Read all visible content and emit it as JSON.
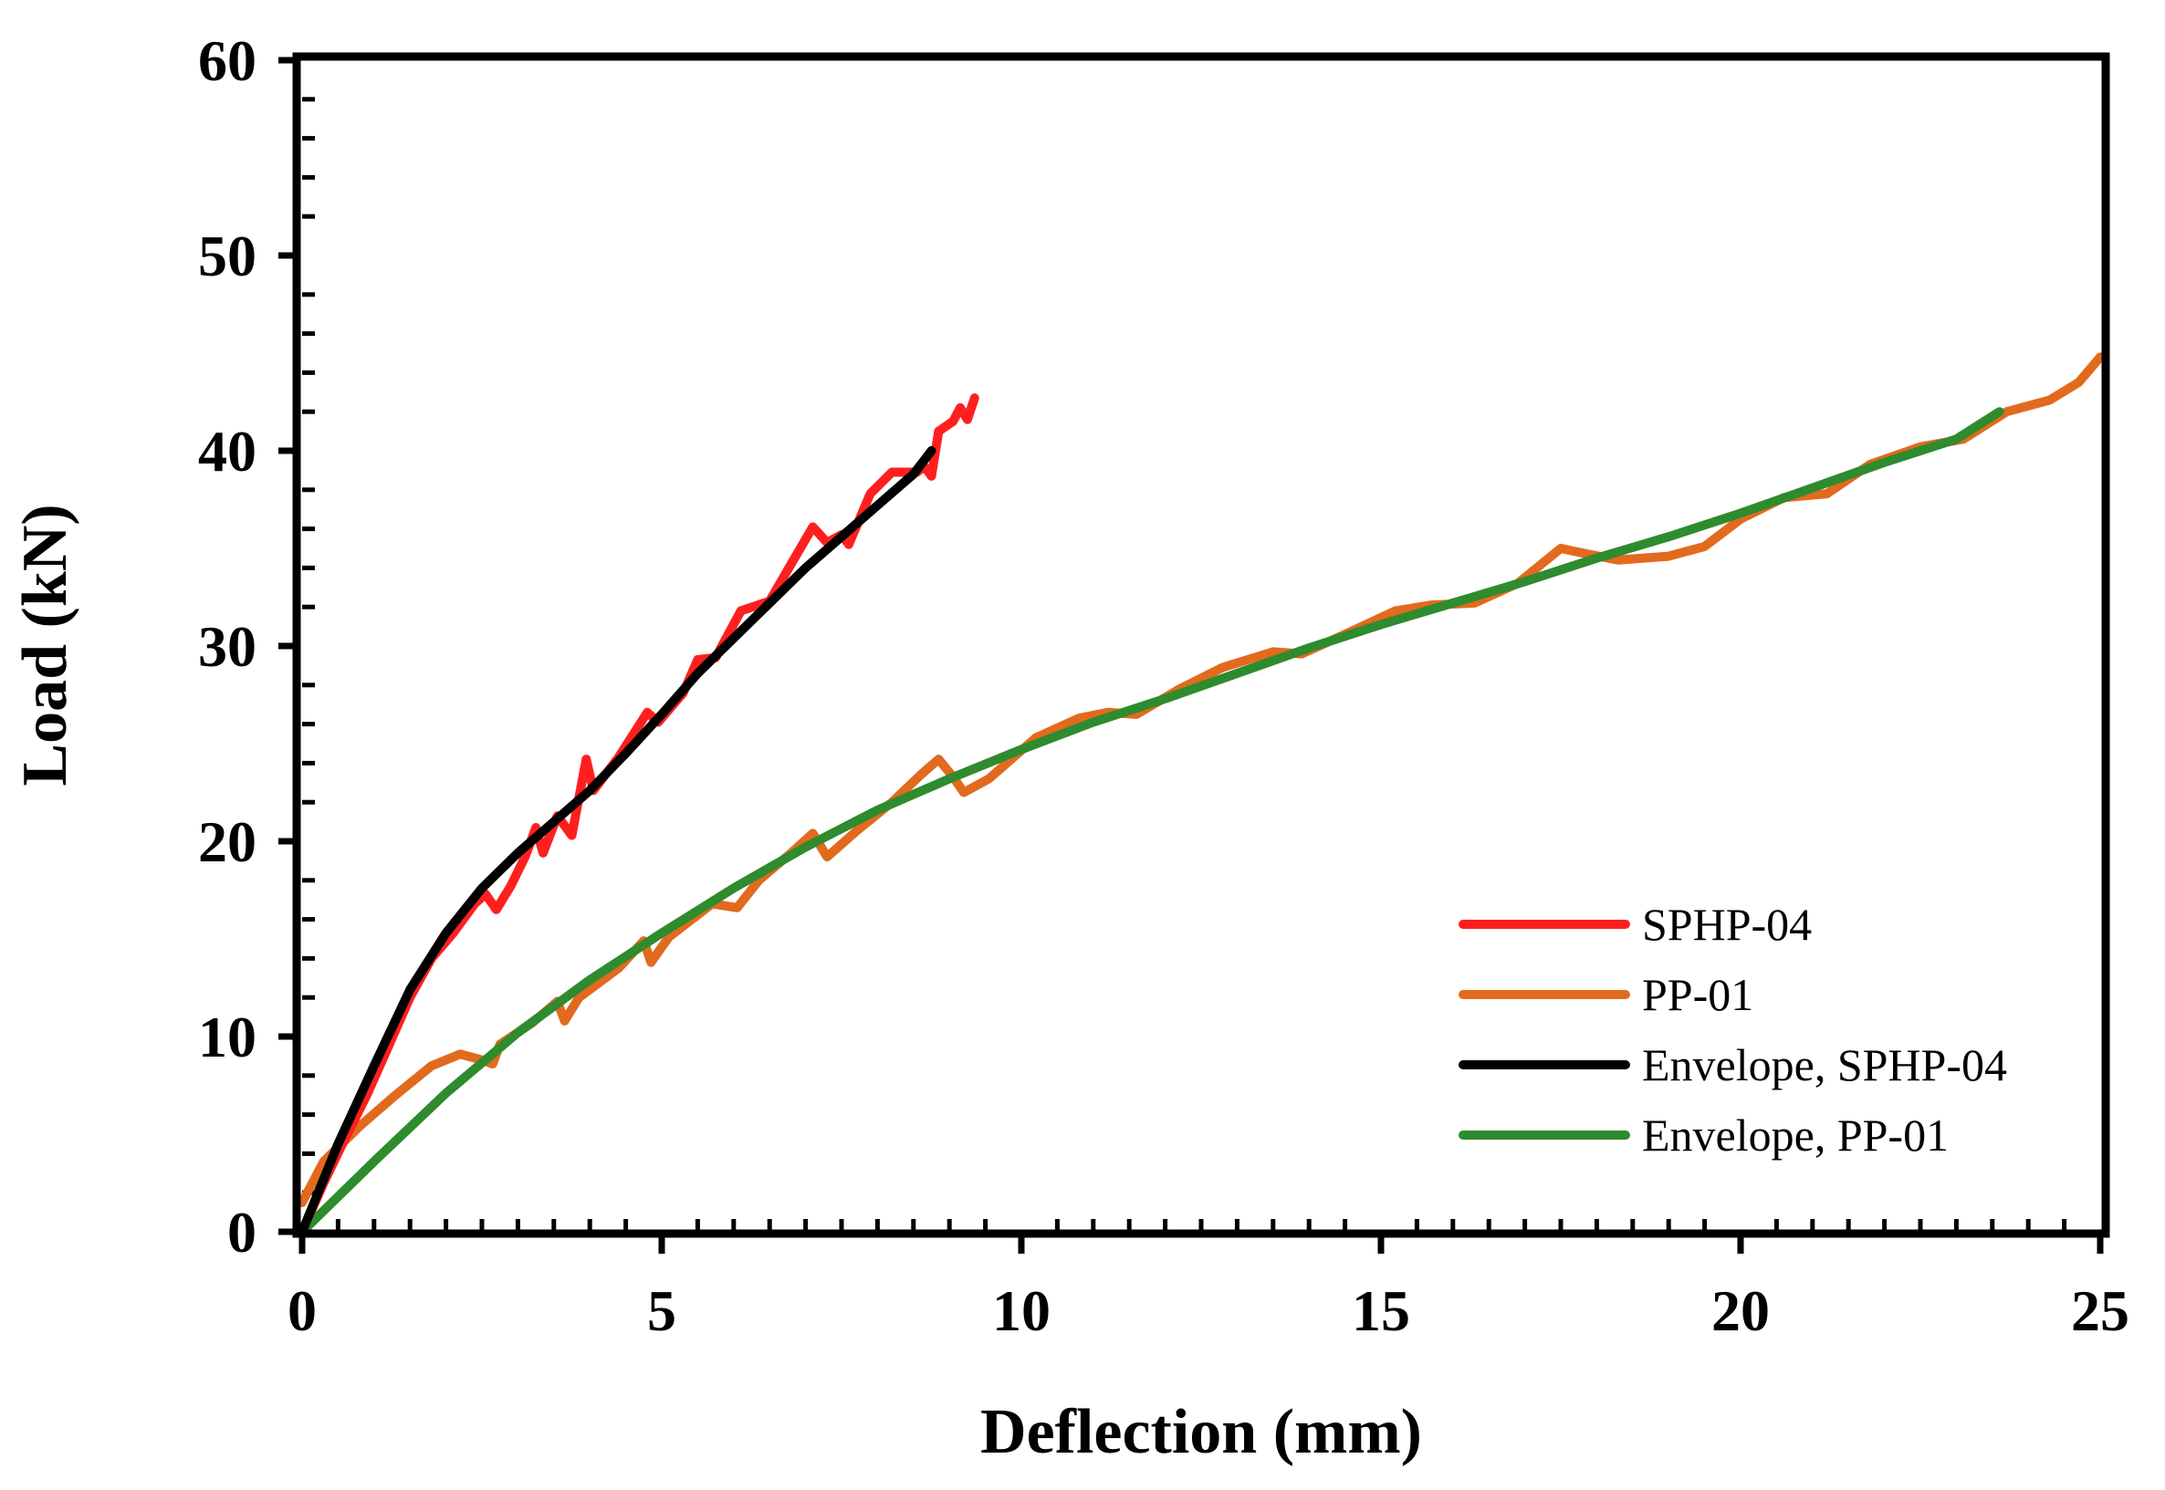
{
  "chart_data": {
    "type": "line",
    "title": "",
    "xlabel": "Deflection (mm)",
    "ylabel": "Load (kN)",
    "xlim": [
      0,
      25
    ],
    "ylim": [
      0,
      60
    ],
    "xticks": [
      0,
      5,
      10,
      15,
      20,
      25
    ],
    "yticks": [
      0,
      10,
      20,
      30,
      40,
      50,
      60
    ],
    "x_minor_step": 0.5,
    "y_minor_step": 2,
    "grid": false,
    "legend_position": "bottom-right",
    "series": [
      {
        "name": "SPHP-04",
        "color": "#ff1f1f",
        "points": [
          [
            0,
            0
          ],
          [
            0.3,
            2.5
          ],
          [
            0.6,
            4.8
          ],
          [
            0.9,
            7
          ],
          [
            1.2,
            9.5
          ],
          [
            1.5,
            12
          ],
          [
            1.8,
            14
          ],
          [
            2.1,
            15.3
          ],
          [
            2.4,
            16.8
          ],
          [
            2.55,
            17.3
          ],
          [
            2.7,
            16.5
          ],
          [
            2.9,
            17.7
          ],
          [
            3.1,
            19.2
          ],
          [
            3.25,
            20.7
          ],
          [
            3.35,
            19.4
          ],
          [
            3.55,
            21.3
          ],
          [
            3.75,
            20.3
          ],
          [
            3.95,
            24.2
          ],
          [
            4.05,
            22.6
          ],
          [
            4.4,
            24.3
          ],
          [
            4.8,
            26.6
          ],
          [
            4.95,
            26.1
          ],
          [
            5.3,
            27.6
          ],
          [
            5.5,
            29.3
          ],
          [
            5.75,
            29.4
          ],
          [
            6.1,
            31.8
          ],
          [
            6.5,
            32.3
          ],
          [
            6.8,
            34.2
          ],
          [
            7.1,
            36.1
          ],
          [
            7.3,
            35.3
          ],
          [
            7.5,
            35.7
          ],
          [
            7.6,
            35.2
          ],
          [
            7.9,
            37.8
          ],
          [
            8.2,
            38.9
          ],
          [
            8.55,
            38.9
          ],
          [
            8.65,
            39.2
          ],
          [
            8.75,
            38.7
          ],
          [
            8.85,
            41
          ],
          [
            9.05,
            41.5
          ],
          [
            9.15,
            42.2
          ],
          [
            9.25,
            41.6
          ],
          [
            9.35,
            42.7
          ]
        ]
      },
      {
        "name": "PP-01",
        "color": "#e26a1e",
        "points": [
          [
            0,
            1.5
          ],
          [
            0.3,
            3.6
          ],
          [
            0.8,
            5.4
          ],
          [
            1.3,
            7
          ],
          [
            1.8,
            8.5
          ],
          [
            2.2,
            9.1
          ],
          [
            2.5,
            8.8
          ],
          [
            2.65,
            8.6
          ],
          [
            2.75,
            9.6
          ],
          [
            3.2,
            10.7
          ],
          [
            3.55,
            11.8
          ],
          [
            3.65,
            10.8
          ],
          [
            3.85,
            12
          ],
          [
            4.4,
            13.5
          ],
          [
            4.75,
            14.9
          ],
          [
            4.85,
            13.8
          ],
          [
            5.1,
            15.1
          ],
          [
            5.7,
            16.8
          ],
          [
            6.05,
            16.6
          ],
          [
            6.35,
            18
          ],
          [
            6.8,
            19.4
          ],
          [
            7.1,
            20.4
          ],
          [
            7.3,
            19.2
          ],
          [
            7.7,
            20.5
          ],
          [
            8.2,
            22
          ],
          [
            8.6,
            23.4
          ],
          [
            8.85,
            24.2
          ],
          [
            9.05,
            23.3
          ],
          [
            9.2,
            22.5
          ],
          [
            9.55,
            23.2
          ],
          [
            10.2,
            25.3
          ],
          [
            10.8,
            26.3
          ],
          [
            11.2,
            26.6
          ],
          [
            11.6,
            26.5
          ],
          [
            12.2,
            27.8
          ],
          [
            12.8,
            28.9
          ],
          [
            13.5,
            29.7
          ],
          [
            13.9,
            29.6
          ],
          [
            14.5,
            30.6
          ],
          [
            15.2,
            31.8
          ],
          [
            15.7,
            32.1
          ],
          [
            16.3,
            32.2
          ],
          [
            16.9,
            33.2
          ],
          [
            17.5,
            35
          ],
          [
            17.75,
            34.8
          ],
          [
            18.3,
            34.4
          ],
          [
            19,
            34.6
          ],
          [
            19.5,
            35.1
          ],
          [
            20,
            36.5
          ],
          [
            20.6,
            37.6
          ],
          [
            21.2,
            37.8
          ],
          [
            21.8,
            39.3
          ],
          [
            22.5,
            40.2
          ],
          [
            23.1,
            40.6
          ],
          [
            23.7,
            42
          ],
          [
            24.3,
            42.6
          ],
          [
            24.7,
            43.5
          ],
          [
            25,
            44.8
          ]
        ]
      },
      {
        "name": "Envelope, SPHP-04",
        "color": "#000000",
        "points": [
          [
            0,
            0
          ],
          [
            0.5,
            4.5
          ],
          [
            1,
            8.5
          ],
          [
            1.5,
            12.4
          ],
          [
            2,
            15.3
          ],
          [
            2.5,
            17.6
          ],
          [
            3,
            19.4
          ],
          [
            3.5,
            21
          ],
          [
            4,
            22.6
          ],
          [
            4.5,
            24.5
          ],
          [
            5,
            26.5
          ],
          [
            5.5,
            28.6
          ],
          [
            6,
            30.4
          ],
          [
            6.5,
            32.2
          ],
          [
            7,
            34
          ],
          [
            7.5,
            35.6
          ],
          [
            8,
            37.2
          ],
          [
            8.5,
            38.8
          ],
          [
            8.75,
            40
          ]
        ]
      },
      {
        "name": "Envelope, PP-01",
        "color": "#2e8b2e",
        "points": [
          [
            0,
            0
          ],
          [
            1,
            3.6
          ],
          [
            2,
            7.1
          ],
          [
            3,
            10.2
          ],
          [
            4,
            12.9
          ],
          [
            5,
            15.3
          ],
          [
            6,
            17.6
          ],
          [
            7,
            19.7
          ],
          [
            8,
            21.6
          ],
          [
            9,
            23.2
          ],
          [
            10,
            24.7
          ],
          [
            11,
            26.1
          ],
          [
            12,
            27.3
          ],
          [
            13,
            28.6
          ],
          [
            14,
            29.9
          ],
          [
            15,
            31.1
          ],
          [
            16,
            32.2
          ],
          [
            17,
            33.3
          ],
          [
            18,
            34.5
          ],
          [
            19,
            35.6
          ],
          [
            20,
            36.8
          ],
          [
            21,
            38.1
          ],
          [
            22,
            39.4
          ],
          [
            23,
            40.6
          ],
          [
            23.6,
            42
          ]
        ]
      }
    ]
  }
}
